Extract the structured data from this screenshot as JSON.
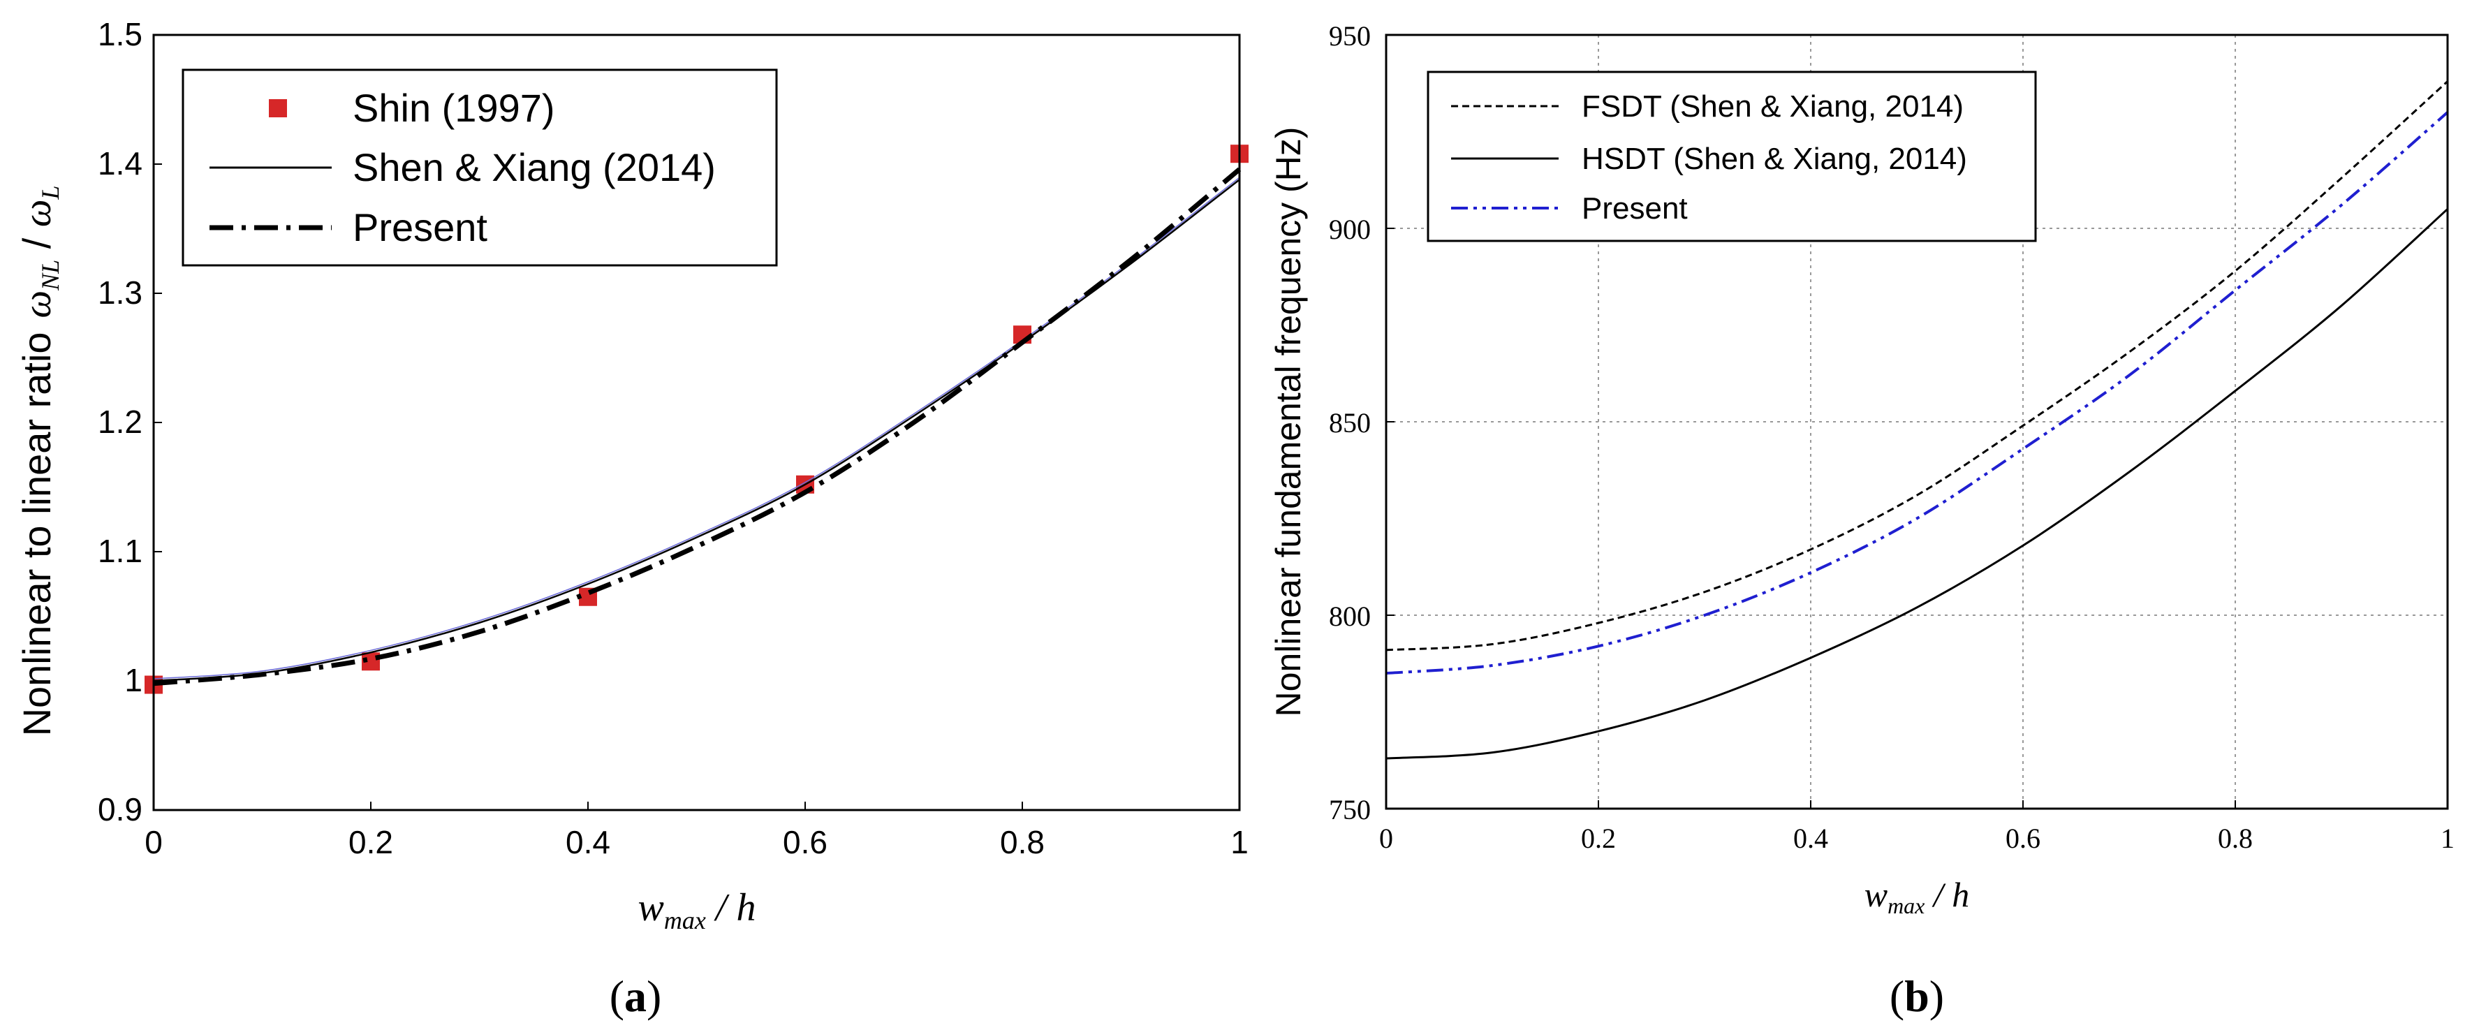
{
  "chart_data": [
    {
      "id": "a",
      "type": "line",
      "caption_open": "(",
      "caption_letter": "a",
      "caption_close": ")",
      "xlabel_main": "w",
      "xlabel_sub": "max",
      "xlabel_tail": " / h",
      "ylabel_text": "Nonlinear to linear ratio",
      "ylabel_sym1": "ω",
      "ylabel_sub1": "NL",
      "ylabel_slash": " / ",
      "ylabel_sym2": "ω",
      "ylabel_sub2": "L",
      "xlim": [
        0,
        1
      ],
      "ylim": [
        0.9,
        1.5
      ],
      "xticks": [
        0,
        0.2,
        0.4,
        0.6,
        0.8,
        1
      ],
      "xtick_labels": [
        "0",
        "0.2",
        "0.4",
        "0.6",
        "0.8",
        "1"
      ],
      "yticks": [
        0.9,
        1.0,
        1.1,
        1.2,
        1.3,
        1.4,
        1.5
      ],
      "ytick_labels": [
        "0.9",
        "1",
        "1.1",
        "1.2",
        "1.3",
        "1.4",
        "1.5"
      ],
      "grid": false,
      "legend_position": "top-left",
      "series": [
        {
          "name": "Shin (1997)",
          "style": "markers",
          "color": "#d62728",
          "x": [
            0,
            0.2,
            0.4,
            0.6,
            0.8,
            1.0
          ],
          "y": [
            0.997,
            1.015,
            1.065,
            1.152,
            1.268,
            1.408
          ]
        },
        {
          "name": "Shen & Xiang (2014)",
          "style": "solid",
          "color": "#000000",
          "x": [
            0,
            0.1,
            0.2,
            0.3,
            0.4,
            0.5,
            0.6,
            0.7,
            0.8,
            0.9,
            1.0
          ],
          "y": [
            1.0,
            1.006,
            1.022,
            1.045,
            1.075,
            1.111,
            1.152,
            1.205,
            1.262,
            1.323,
            1.388
          ]
        },
        {
          "name": "Present",
          "style": "dashdot",
          "color": "#000000",
          "x": [
            0,
            0.1,
            0.2,
            0.3,
            0.4,
            0.5,
            0.6,
            0.7,
            0.8,
            0.9,
            1.0
          ],
          "y": [
            0.998,
            1.005,
            1.017,
            1.038,
            1.068,
            1.104,
            1.146,
            1.2,
            1.262,
            1.326,
            1.396
          ]
        }
      ]
    },
    {
      "id": "b",
      "type": "line",
      "caption_open": "(",
      "caption_letter": "b",
      "caption_close": ")",
      "xlabel_main": "w",
      "xlabel_sub": "max",
      "xlabel_tail": " / h",
      "ylabel": "Nonlinear fundamental frequency (Hz)",
      "xlim": [
        0,
        1
      ],
      "ylim": [
        750,
        950
      ],
      "xticks": [
        0,
        0.2,
        0.4,
        0.6,
        0.8,
        1
      ],
      "xtick_labels": [
        "0",
        "0.2",
        "0.4",
        "0.6",
        "0.8",
        "1"
      ],
      "yticks": [
        750,
        800,
        850,
        900,
        950
      ],
      "ytick_labels": [
        "750",
        "800",
        "850",
        "900",
        "950"
      ],
      "grid": true,
      "legend_position": "top-left",
      "series": [
        {
          "name": "FSDT (Shen & Xiang, 2014)",
          "style": "dashed",
          "color": "#000000",
          "x": [
            0,
            0.1,
            0.2,
            0.3,
            0.4,
            0.5,
            0.6,
            0.7,
            0.8,
            0.9,
            1.0
          ],
          "y": [
            791,
            792.5,
            798,
            806,
            817,
            831,
            849,
            868,
            889,
            913,
            938
          ]
        },
        {
          "name": "HSDT (Shen & Xiang, 2014)",
          "style": "solid",
          "color": "#000000",
          "x": [
            0,
            0.1,
            0.2,
            0.3,
            0.4,
            0.5,
            0.6,
            0.7,
            0.8,
            0.9,
            1.0
          ],
          "y": [
            763,
            764.5,
            770,
            778,
            789,
            802,
            818,
            837,
            858,
            880,
            905
          ]
        },
        {
          "name": "Present",
          "style": "dashdot",
          "color": "#1f1fd0",
          "x": [
            0,
            0.1,
            0.2,
            0.3,
            0.4,
            0.5,
            0.6,
            0.7,
            0.8,
            0.9,
            1.0
          ],
          "y": [
            785,
            787,
            792,
            800,
            811,
            825,
            843,
            862,
            884,
            906,
            930
          ]
        }
      ]
    }
  ]
}
